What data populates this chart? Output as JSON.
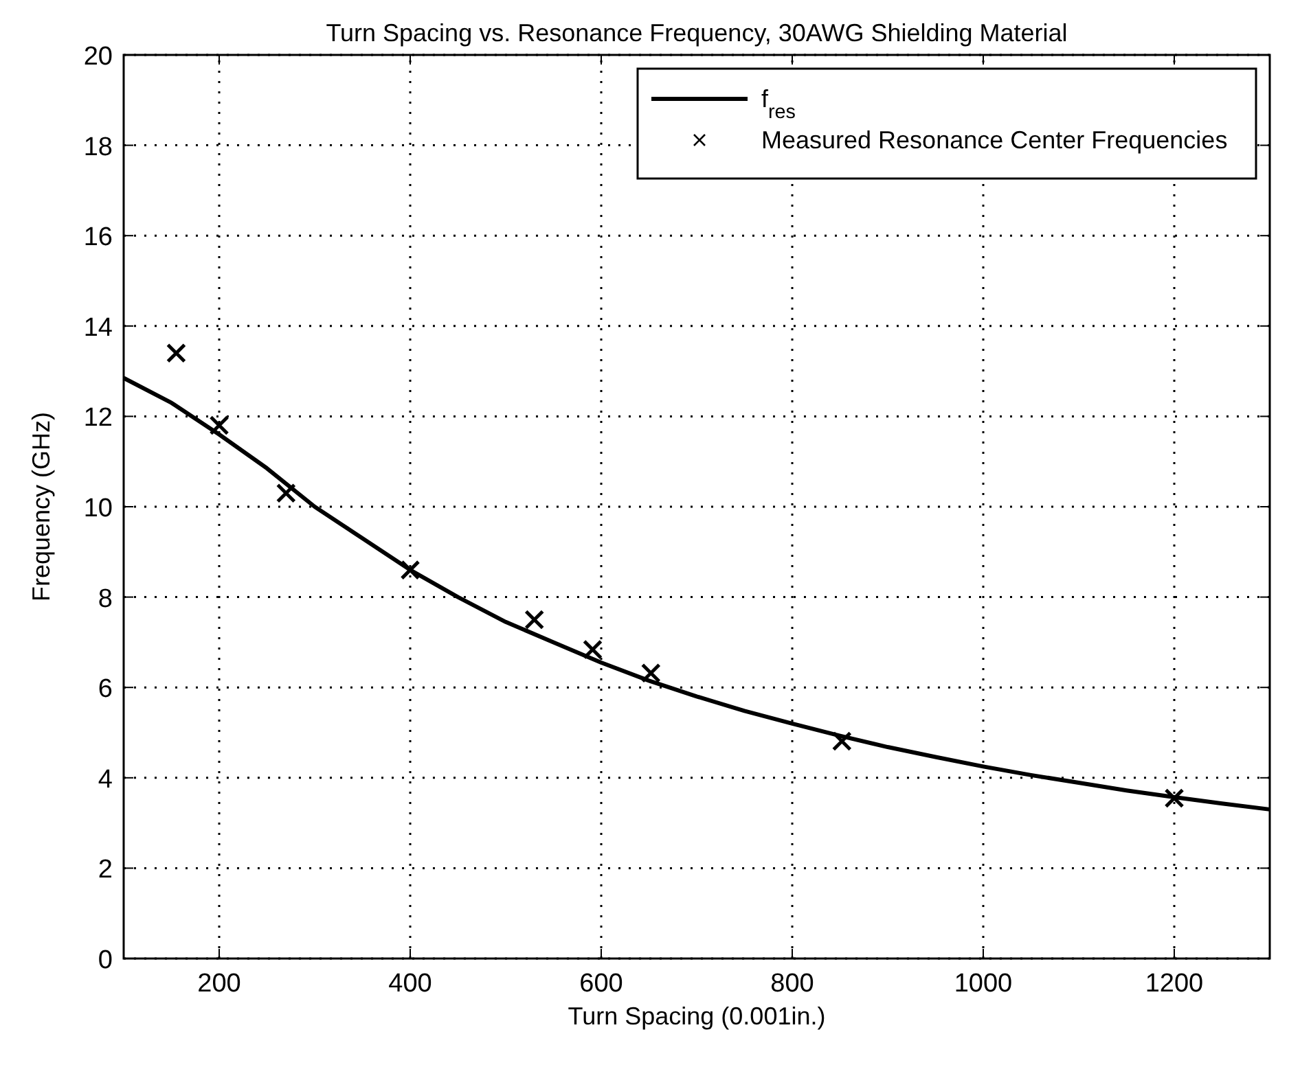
{
  "chart_data": {
    "type": "line",
    "title": "Turn Spacing vs. Resonance Frequency, 30AWG Shielding Material",
    "xlabel": "Turn Spacing (0.001in.)",
    "ylabel": "Frequency (GHz)",
    "xlim": [
      100,
      1300
    ],
    "xticks": [
      200,
      400,
      600,
      800,
      1000,
      1200
    ],
    "ylim": [
      0,
      20
    ],
    "yticks": [
      0,
      2,
      4,
      6,
      8,
      10,
      12,
      14,
      16,
      18,
      20
    ],
    "grid": true,
    "legend": "top right",
    "series": [
      {
        "name": "f$_{res}$",
        "color": "#000000",
        "marker": "none",
        "line_style": "solid",
        "x": [
          100,
          150,
          200,
          250,
          300,
          350,
          400,
          450,
          500,
          550,
          600,
          650,
          700,
          750,
          800,
          850,
          900,
          950,
          1000,
          1050,
          1100,
          1150,
          1200,
          1250,
          1300
        ],
        "values": [
          12.85,
          12.3,
          11.6,
          10.85,
          10.0,
          9.3,
          8.6,
          8.0,
          7.45,
          7.0,
          6.55,
          6.15,
          5.8,
          5.48,
          5.2,
          4.93,
          4.68,
          4.46,
          4.25,
          4.06,
          3.89,
          3.72,
          3.57,
          3.43,
          3.3
        ]
      },
      {
        "name": "Measured Resonance Center Frequencies",
        "type": "scatter",
        "color": "#000000",
        "marker": "cross",
        "x": [
          155,
          200,
          270,
          400,
          530,
          591,
          652,
          852,
          1200
        ],
        "values": [
          13.4,
          11.8,
          10.3,
          8.6,
          7.5,
          6.84,
          6.32,
          4.81,
          3.55
        ]
      }
    ]
  }
}
